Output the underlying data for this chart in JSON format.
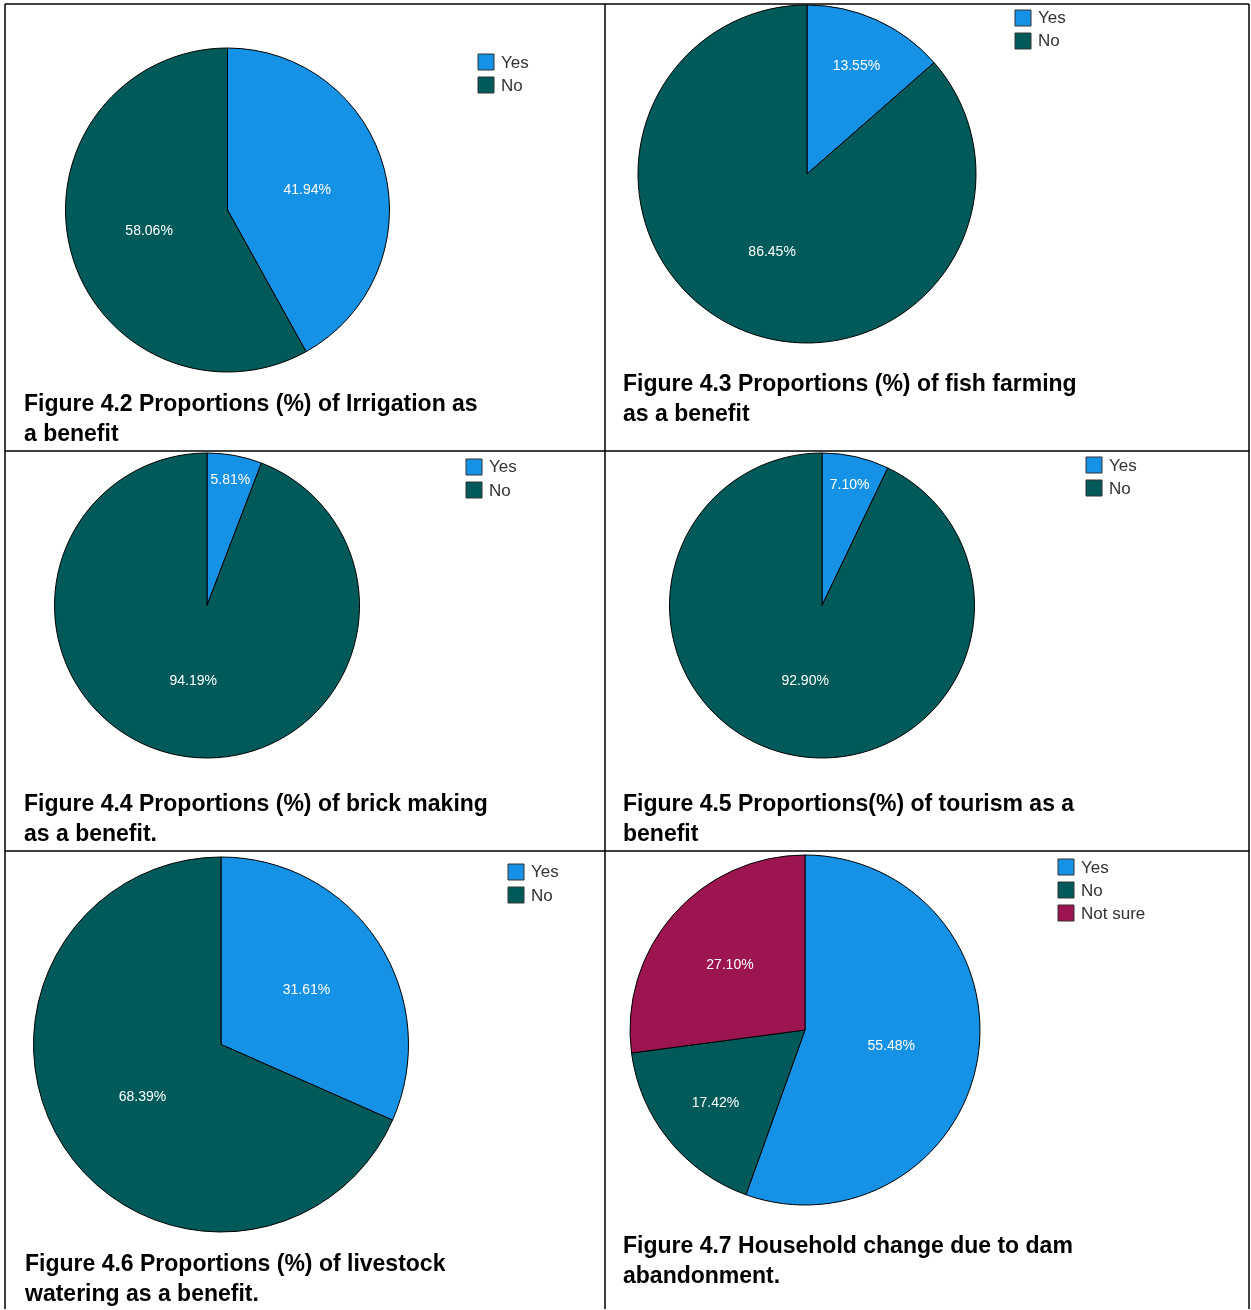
{
  "chart_data": [
    {
      "type": "pie",
      "title": "Figure 4.2 Proportions (%) of Irrigation as a benefit",
      "categories": [
        "Yes",
        "No"
      ],
      "values": [
        41.94,
        58.06
      ],
      "value_labels": [
        "41.94%",
        "58.06%"
      ],
      "colors": [
        "#1591e6",
        "#005a5a"
      ],
      "legend": "top right"
    },
    {
      "type": "pie",
      "title": "Figure 4.3 Proportions (%) of fish farming as a benefit",
      "categories": [
        "Yes",
        "No"
      ],
      "values": [
        13.55,
        86.45
      ],
      "value_labels": [
        "13.55%",
        "86.45%"
      ],
      "colors": [
        "#1591e6",
        "#005a5a"
      ],
      "legend": "top right"
    },
    {
      "type": "pie",
      "title": "Figure 4.4 Proportions (%) of brick making as a benefit.",
      "categories": [
        "Yes",
        "No"
      ],
      "values": [
        5.81,
        94.19
      ],
      "value_labels": [
        "5.81%",
        "94.19%"
      ],
      "colors": [
        "#1591e6",
        "#005a5a"
      ],
      "legend": "top right"
    },
    {
      "type": "pie",
      "title": "Figure 4.5 Proportions(%) of tourism as a benefit",
      "categories": [
        "Yes",
        "No"
      ],
      "values": [
        7.1,
        92.9
      ],
      "value_labels": [
        "7.10%",
        "92.90%"
      ],
      "colors": [
        "#1591e6",
        "#005a5a"
      ],
      "legend": "top right"
    },
    {
      "type": "pie",
      "title": "Figure 4.6 Proportions (%) of livestock watering as a benefit.",
      "categories": [
        "Yes",
        "No"
      ],
      "values": [
        31.61,
        68.39
      ],
      "value_labels": [
        "31.61%",
        "68.39%"
      ],
      "colors": [
        "#1591e6",
        "#005a5a"
      ],
      "legend": "top right"
    },
    {
      "type": "pie",
      "title": "Figure 4.7 Household change due to dam abandonment.",
      "categories": [
        "Yes",
        "No",
        "Not sure"
      ],
      "values": [
        55.48,
        17.42,
        27.1
      ],
      "value_labels": [
        "55.48%",
        "17.42%",
        "27.10%"
      ],
      "colors": [
        "#1591e6",
        "#005a5a",
        "#9c1550"
      ],
      "legend": "top right"
    }
  ]
}
